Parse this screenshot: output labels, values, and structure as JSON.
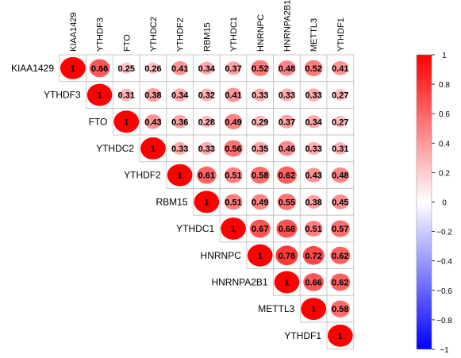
{
  "chart_data": {
    "type": "heatmap",
    "title": "",
    "genes": [
      "KIAA1429",
      "YTHDF3",
      "FTO",
      "YTHDC2",
      "YTHDF2",
      "RBM15",
      "YTHDC1",
      "HNRNPC",
      "HNRNPA2B1",
      "METTL3",
      "YTHDF1"
    ],
    "values": [
      [
        "1",
        "0.66",
        "0.25",
        "0.26",
        "0.41",
        "0.34",
        "0.37",
        "0.52",
        "0.48",
        "0.52",
        "0.41"
      ],
      [
        null,
        "1",
        "0.31",
        "0.38",
        "0.34",
        "0.32",
        "0.41",
        "0.33",
        "0.33",
        "0.33",
        "0.27"
      ],
      [
        null,
        null,
        "1",
        "0.43",
        "0.36",
        "0.28",
        "0.49",
        "0.29",
        "0.37",
        "0.34",
        "0.27"
      ],
      [
        null,
        null,
        null,
        "1",
        "0.33",
        "0.33",
        "0.56",
        "0.35",
        "0.46",
        "0.33",
        "0.31"
      ],
      [
        null,
        null,
        null,
        null,
        "1",
        "0.61",
        "0.51",
        "0.58",
        "0.62",
        "0.43",
        "0.48"
      ],
      [
        null,
        null,
        null,
        null,
        null,
        "1",
        "0.51",
        "0.49",
        "0.55",
        "0.38",
        "0.45"
      ],
      [
        null,
        null,
        null,
        null,
        null,
        null,
        "1",
        "0.67",
        "0.68",
        "0.51",
        "0.57"
      ],
      [
        null,
        null,
        null,
        null,
        null,
        null,
        null,
        "1",
        "0.78",
        "0.72",
        "0.62"
      ],
      [
        null,
        null,
        null,
        null,
        null,
        null,
        null,
        null,
        "1",
        "0.66",
        "0.62"
      ],
      [
        null,
        null,
        null,
        null,
        null,
        null,
        null,
        null,
        null,
        "1",
        "0.58"
      ],
      [
        null,
        null,
        null,
        null,
        null,
        null,
        null,
        null,
        null,
        null,
        "1"
      ]
    ],
    "colorbar": {
      "min": -1,
      "max": 1,
      "ticks": [
        "1",
        "0.8",
        "0.6",
        "0.4",
        "0.2",
        "0",
        "−0.2",
        "−0.4",
        "−0.6",
        "−0.8",
        "−1"
      ],
      "colors": {
        "negative": "#0000ff",
        "neutral": "#ffffff",
        "positive": "#ff0000"
      }
    },
    "grid": true,
    "legend_position": "right"
  }
}
